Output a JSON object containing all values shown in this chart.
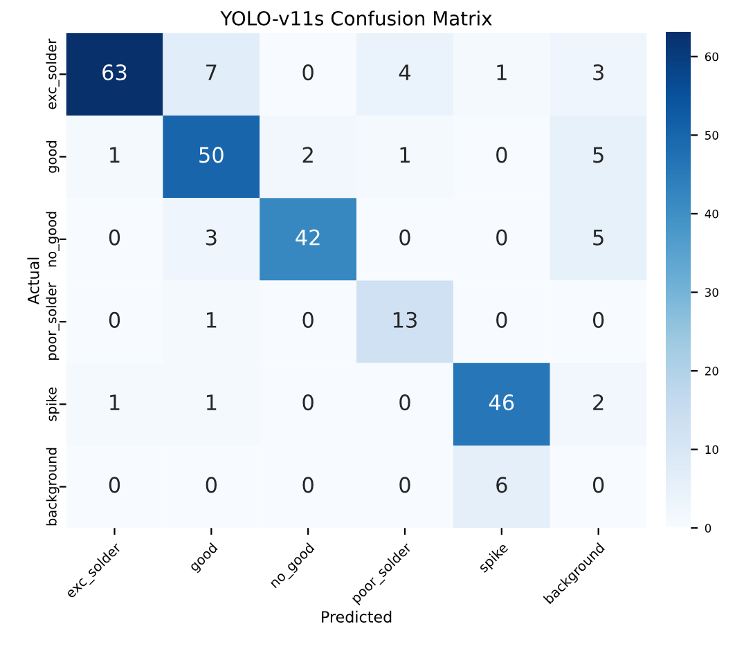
{
  "chart_data": {
    "type": "heatmap",
    "title": "YOLO-v11s Confusion Matrix",
    "xlabel": "Predicted",
    "ylabel": "Actual",
    "categories": [
      "exc_solder",
      "good",
      "no_good",
      "poor_solder",
      "spike",
      "background"
    ],
    "y_categories": [
      "exc_solder",
      "good",
      "no_good",
      "poor_solder",
      "spike",
      "background"
    ],
    "cells": [
      [
        63,
        7,
        0,
        4,
        1,
        3
      ],
      [
        1,
        50,
        2,
        1,
        0,
        5
      ],
      [
        0,
        3,
        42,
        0,
        0,
        5
      ],
      [
        0,
        1,
        0,
        13,
        0,
        0
      ],
      [
        1,
        1,
        0,
        0,
        46,
        2
      ],
      [
        0,
        0,
        0,
        0,
        6,
        0
      ]
    ],
    "data_labels": true,
    "clim": [
      0,
      63
    ],
    "cticks": [
      0,
      10,
      20,
      30,
      40,
      50,
      60
    ]
  }
}
